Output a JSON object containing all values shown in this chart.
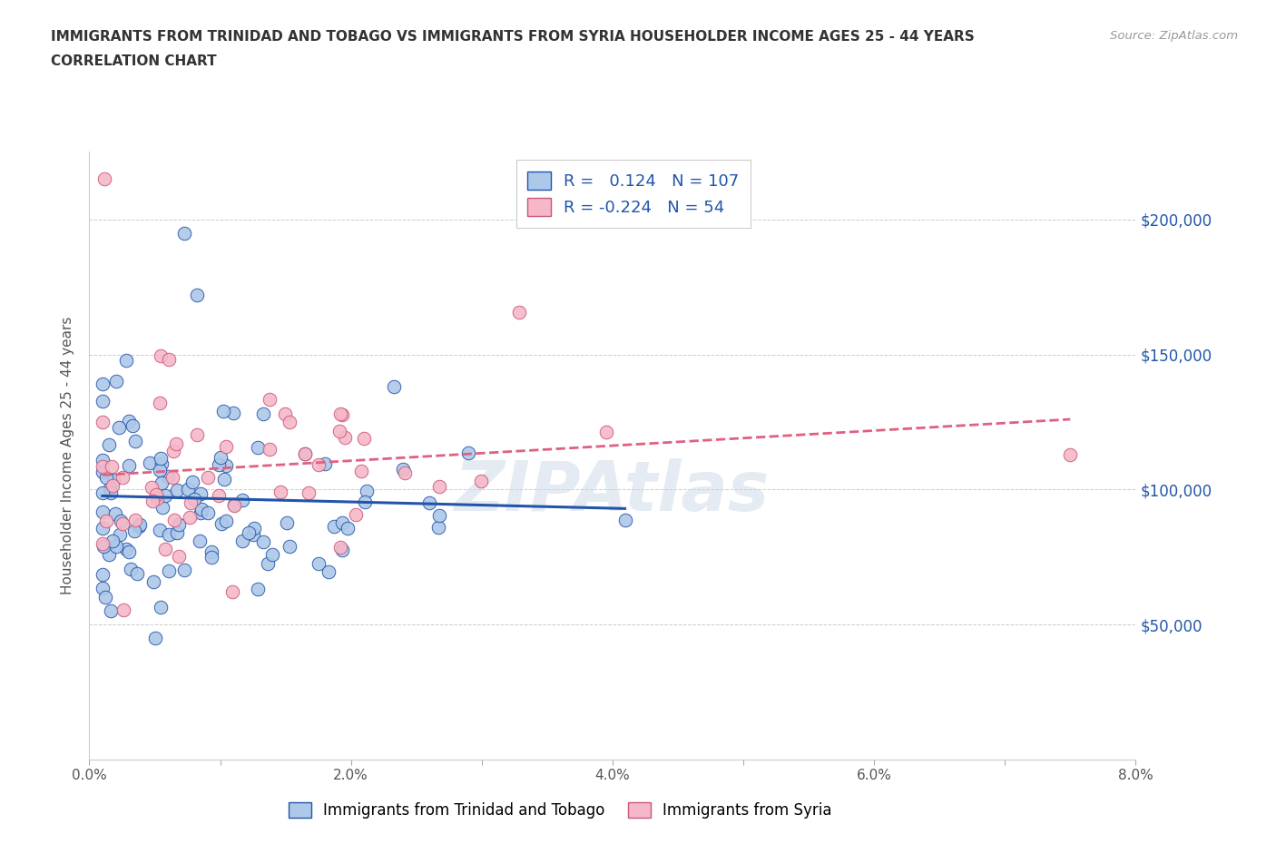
{
  "title_line1": "IMMIGRANTS FROM TRINIDAD AND TOBAGO VS IMMIGRANTS FROM SYRIA HOUSEHOLDER INCOME AGES 25 - 44 YEARS",
  "title_line2": "CORRELATION CHART",
  "source_text": "Source: ZipAtlas.com",
  "ylabel": "Householder Income Ages 25 - 44 years",
  "xlim": [
    0.0,
    0.08
  ],
  "ylim": [
    0,
    225000
  ],
  "color_tt": "#adc8e8",
  "color_syria": "#f5b8c8",
  "line_color_tt": "#2255aa",
  "line_color_syria": "#e06080",
  "R_tt": 0.124,
  "N_tt": 107,
  "R_syria": -0.224,
  "N_syria": 54,
  "watermark": "ZIPAtlas"
}
